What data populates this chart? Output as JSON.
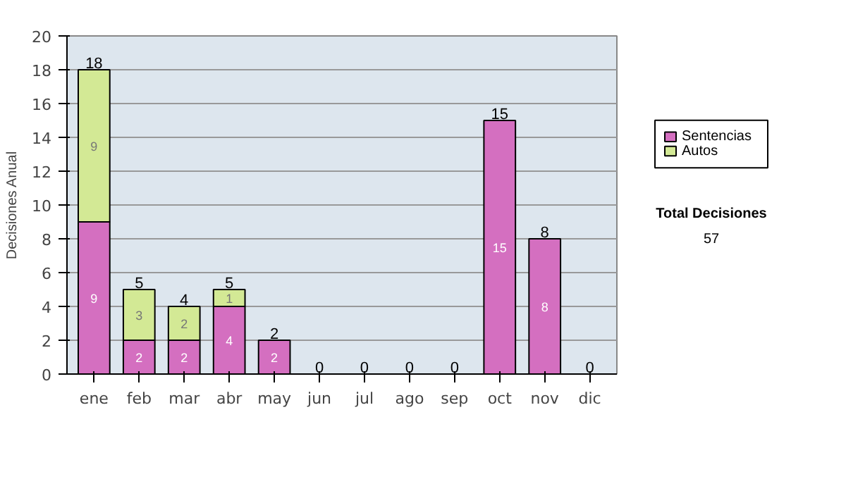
{
  "chart_data": {
    "type": "bar",
    "stacked": true,
    "ylabel": "Decisiones Anual",
    "categories": [
      "ene",
      "feb",
      "mar",
      "abr",
      "may",
      "jun",
      "jul",
      "ago",
      "sep",
      "oct",
      "nov",
      "dic"
    ],
    "series": [
      {
        "name": "Sentencias",
        "color": "#d46fc0",
        "values": [
          9,
          2,
          2,
          4,
          2,
          0,
          0,
          0,
          0,
          15,
          8,
          0
        ],
        "value_labels": [
          "9",
          "2",
          "2",
          "4",
          "2",
          null,
          null,
          null,
          null,
          "15",
          "8",
          null
        ]
      },
      {
        "name": "Autos",
        "color": "#d3e995",
        "values": [
          9,
          3,
          2,
          1,
          0,
          0,
          0,
          0,
          0,
          0,
          0,
          0
        ],
        "value_labels": [
          "9",
          "3",
          "2",
          "1",
          null,
          null,
          null,
          null,
          null,
          null,
          null,
          null
        ]
      }
    ],
    "totals": [
      "18",
      "5",
      "4",
      "5",
      "2",
      "0",
      "0",
      "0",
      "0",
      "15",
      "8",
      "0"
    ],
    "ylim": [
      0,
      20
    ],
    "yticks": [
      0,
      2,
      4,
      6,
      8,
      10,
      12,
      14,
      16,
      18,
      20
    ],
    "grid": "y",
    "legend": "right",
    "annotations": [
      "Total Decisiones",
      "57"
    ]
  }
}
